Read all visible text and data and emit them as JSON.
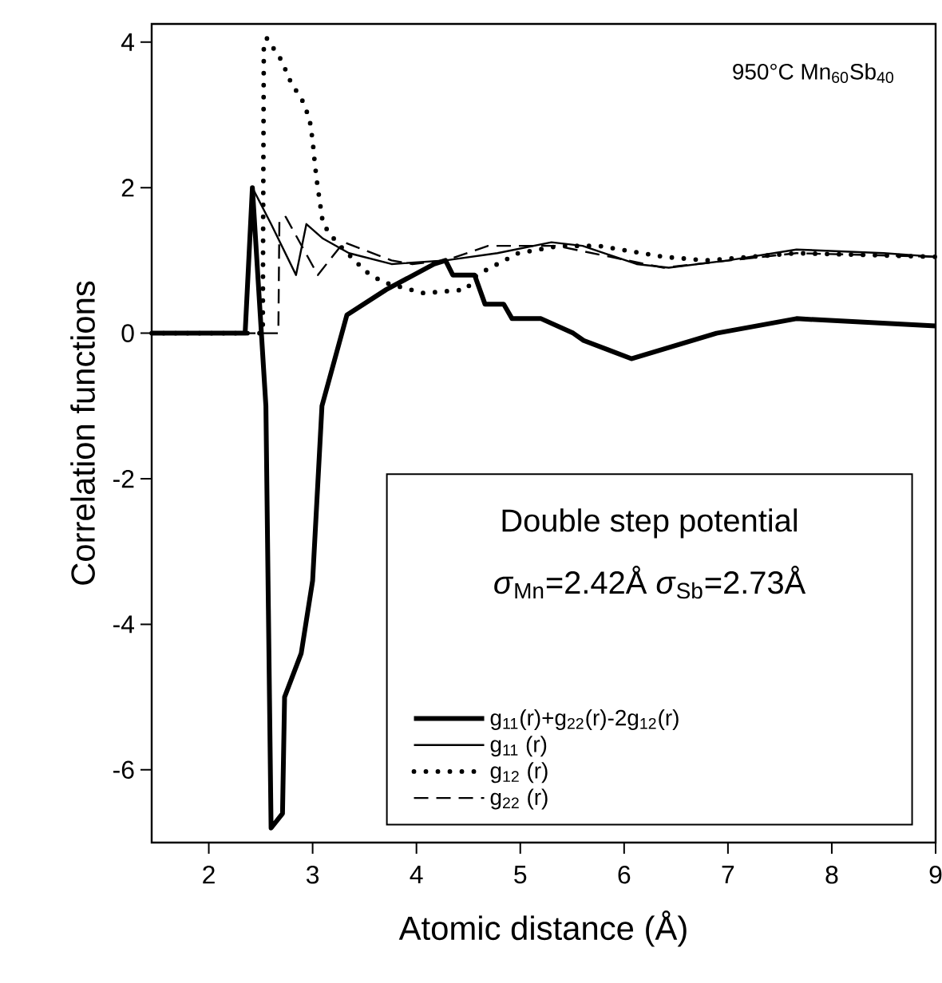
{
  "chart_data": {
    "type": "line",
    "xlabel": "Atomic distance (Å)",
    "ylabel": "Correlation functions",
    "legend_title": "Double step potential",
    "annotations": [
      "950°C Mn$_{60}$Sb$_{40}$",
      "*σ*$_{Mn}$=2.42Å *σ*$_{Sb}$=2.73Å"
    ],
    "xlim": [
      1.45,
      9
    ],
    "ylim": [
      -7,
      4.25
    ],
    "xticks": [
      2,
      3,
      4,
      5,
      6,
      7,
      8,
      9
    ],
    "yticks": [
      -6,
      -4,
      -2,
      0,
      2,
      4
    ],
    "grid": false,
    "legend": "bottom right",
    "marker": "none",
    "series": [
      {
        "name": "g$_{11}$(r)+g$_{22}$(r)-2g$_{12}$(r)",
        "color": "#000000",
        "line_style": "solid",
        "x": [
          1.45,
          2.35,
          2.42,
          2.55,
          2.6,
          2.71,
          2.73,
          2.89,
          3.0,
          3.09,
          3.33,
          3.71,
          4.17,
          4.28,
          4.35,
          4.56,
          4.66,
          4.84,
          4.92,
          5.2,
          5.51,
          5.61,
          6.07,
          6.89,
          7.66,
          9.0
        ],
        "values": [
          0,
          0,
          2.0,
          -1.0,
          -6.8,
          -6.6,
          -5.0,
          -4.4,
          -3.4,
          -1.0,
          0.25,
          0.6,
          0.95,
          1.0,
          0.8,
          0.8,
          0.4,
          0.4,
          0.2,
          0.2,
          0.0,
          -0.1,
          -0.35,
          0,
          0.2,
          0.1
        ]
      },
      {
        "name": "g$_{11}$ (r)",
        "color": "#000000",
        "line_style": "solid",
        "x": [
          1.45,
          2.35,
          2.42,
          2.6,
          2.84,
          2.94,
          3.1,
          3.35,
          3.76,
          4.28,
          4.78,
          5.3,
          5.6,
          6.12,
          6.43,
          7.0,
          7.66,
          8.5,
          9.0
        ],
        "values": [
          0,
          0,
          2.0,
          1.5,
          0.8,
          1.5,
          1.3,
          1.1,
          0.95,
          1.0,
          1.1,
          1.25,
          1.2,
          0.95,
          0.9,
          1.0,
          1.15,
          1.1,
          1.05
        ]
      },
      {
        "name": "g$_{12}$ (r)",
        "color": "#000000",
        "line_style": "dotted",
        "x": [
          1.45,
          2.52,
          2.53,
          2.56,
          2.7,
          2.79,
          2.9,
          2.97,
          3.0,
          3.02,
          3.04,
          3.07,
          3.1,
          3.23,
          3.51,
          3.68,
          4.07,
          4.48,
          4.58,
          4.78,
          4.98,
          5.38,
          5.76,
          6.38,
          6.79,
          7.66,
          9.0
        ],
        "values": [
          0,
          0,
          4.0,
          4.05,
          3.75,
          3.45,
          3.2,
          2.95,
          2.65,
          2.35,
          2.1,
          1.8,
          1.5,
          1.25,
          0.85,
          0.7,
          0.55,
          0.6,
          0.8,
          0.95,
          1.1,
          1.2,
          1.2,
          1.05,
          1.0,
          1.1,
          1.05
        ]
      },
      {
        "name": "g$_{22}$ (r)",
        "color": "#000000",
        "line_style": "dashed",
        "x": [
          1.45,
          2.67,
          2.68,
          2.74,
          3.05,
          3.3,
          3.76,
          3.96,
          4.28,
          4.69,
          5.35,
          6.38,
          7.66,
          9.0
        ],
        "values": [
          0,
          0,
          1.55,
          1.6,
          0.8,
          1.25,
          1.0,
          0.95,
          1.0,
          1.2,
          1.2,
          0.9,
          1.1,
          1.05
        ]
      }
    ]
  }
}
